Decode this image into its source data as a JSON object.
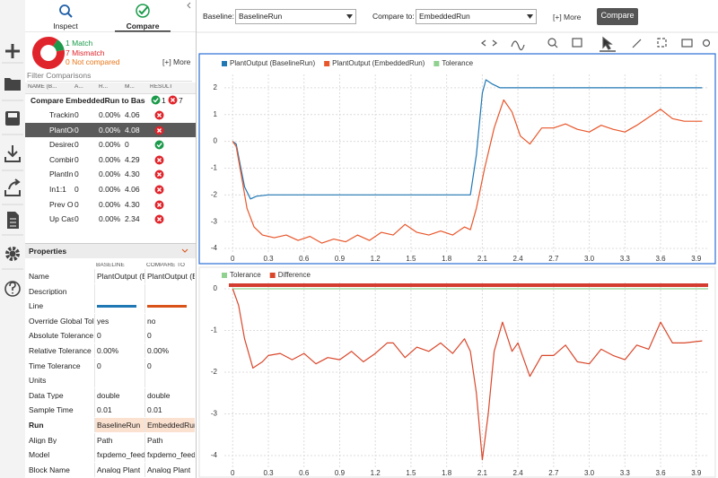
{
  "left_panel": {
    "tabs": [
      "Inspect",
      "Compare"
    ],
    "summary": [
      {
        "value": 1,
        "label": "1 Match",
        "color": "#1a9a4a"
      },
      {
        "value": 7,
        "label": "7 Mismatch",
        "color": "#e0242b"
      },
      {
        "value": 0,
        "label": "0 Not compared",
        "color": "#e8761a"
      }
    ],
    "more": "[+] More",
    "filter": "Filter Comparisons",
    "table": {
      "columns": [
        "NAME (B...",
        "A...",
        "R...",
        "M...",
        "RESULT"
      ],
      "group": {
        "name": "Compare EmbeddedRun to Base",
        "pass": "1",
        "fail": "7"
      },
      "rows": [
        {
          "cells": [
            "Tracking",
            "0",
            "0.00%",
            "4.06"
          ],
          "result": "fail"
        },
        {
          "cells": [
            "PlantOut",
            "0",
            "0.00%",
            "4.08"
          ],
          "result": "fail",
          "selected": true
        },
        {
          "cells": [
            "Desired",
            "0",
            "0.00%",
            "0"
          ],
          "result": "pass"
        },
        {
          "cells": [
            "Combin",
            "0",
            "0.00%",
            "4.29"
          ],
          "result": "fail"
        },
        {
          "cells": [
            "PlantInp",
            "0",
            "0.00%",
            "4.30"
          ],
          "result": "fail"
        },
        {
          "cells": [
            "In1:1",
            "0",
            "0.00%",
            "4.06"
          ],
          "result": "fail"
        },
        {
          "cells": [
            "Prev Ou",
            "0",
            "0.00%",
            "4.30"
          ],
          "result": "fail"
        },
        {
          "cells": [
            "Up Cast",
            "0",
            "0.00%",
            "2.34"
          ],
          "result": "fail"
        }
      ]
    },
    "properties": {
      "title": "Properties",
      "columns": [
        "BASELINE",
        "COMPARE TO"
      ],
      "rows": [
        {
          "label": "Name",
          "baseline": "PlantOutput (B",
          "compare": "PlantOutput (E"
        },
        {
          "label": "Description"
        },
        {
          "label": "Line",
          "baseline_color": "#1f77b4",
          "compare_color": "#d95319"
        },
        {
          "label": "Override Global Tole",
          "baseline": "yes",
          "compare": "no"
        },
        {
          "label": "Absolute Tolerance",
          "baseline": "0",
          "compare": "0"
        },
        {
          "label": "Relative Tolerance",
          "baseline": "0.00%",
          "compare": "0.00%"
        },
        {
          "label": "Time Tolerance",
          "baseline": "0",
          "compare": "0"
        },
        {
          "label": "Units"
        },
        {
          "label": "Data Type",
          "baseline": "double",
          "compare": "double"
        },
        {
          "label": "Sample Time",
          "baseline": "0.01",
          "compare": "0.01"
        },
        {
          "label": "Run",
          "baseline": "BaselineRun",
          "compare": "EmbeddedRun",
          "highlight": true
        },
        {
          "label": "Align By",
          "baseline": "Path",
          "compare": "Path"
        },
        {
          "label": "Model",
          "baseline": "fxpdemo_feedb",
          "compare": "fxpdemo_feedb"
        },
        {
          "label": "Block Name",
          "baseline": "Analog Plant",
          "compare": "Analog Plant"
        }
      ]
    }
  },
  "top_bar": {
    "baseline_label": "Baseline:",
    "baseline": "BaselineRun",
    "compare_label": "Compare to:",
    "compare": "EmbeddedRun",
    "more": "[+] More",
    "button": "Compare"
  },
  "chart_data": [
    {
      "type": "line",
      "xlim": [
        -0.07,
        4.0
      ],
      "ylim": [
        -4.2,
        2.5
      ],
      "grid": true,
      "xticks": [
        0,
        0.3,
        0.6,
        0.9,
        1.2,
        1.5,
        1.8,
        2.1,
        2.4,
        2.7,
        {
          "value": 3,
          "label": "3.0"
        },
        3.3,
        3.6,
        3.9
      ],
      "yticks": [
        -4,
        -3,
        -2,
        -1,
        0,
        1,
        2
      ],
      "series": [
        {
          "name": "PlantOutput (BaselineRun)",
          "color": "#1f77b4",
          "x": [
            0,
            0.03,
            0.06,
            0.1,
            0.15,
            0.2,
            0.3,
            2.0,
            2.05,
            2.1,
            2.13,
            2.18,
            2.25,
            3.95
          ],
          "values": [
            0,
            -0.1,
            -0.8,
            -1.7,
            -2.15,
            -2.05,
            -2,
            -2,
            -0.5,
            1.8,
            2.3,
            2.15,
            2,
            2
          ]
        },
        {
          "name": "PlantOutput (EmbeddedRun)",
          "color": "#e8562a",
          "x": [
            0,
            0.03,
            0.07,
            0.12,
            0.18,
            0.25,
            0.35,
            0.45,
            0.55,
            0.65,
            0.75,
            0.85,
            0.95,
            1.05,
            1.15,
            1.25,
            1.35,
            1.45,
            1.55,
            1.65,
            1.75,
            1.85,
            1.95,
            2.0,
            2.05,
            2.12,
            2.2,
            2.28,
            2.35,
            2.42,
            2.5,
            2.6,
            2.7,
            2.8,
            2.9,
            3.0,
            3.1,
            3.2,
            3.3,
            3.4,
            3.5,
            3.6,
            3.7,
            3.8,
            3.95
          ],
          "values": [
            0,
            -0.2,
            -1.2,
            -2.5,
            -3.2,
            -3.5,
            -3.6,
            -3.5,
            -3.7,
            -3.55,
            -3.8,
            -3.65,
            -3.75,
            -3.5,
            -3.7,
            -3.4,
            -3.5,
            -3.1,
            -3.4,
            -3.5,
            -3.35,
            -3.5,
            -3.2,
            -3.3,
            -2.5,
            -1.0,
            0.5,
            1.55,
            1.1,
            0.2,
            -0.1,
            0.5,
            0.5,
            0.65,
            0.45,
            0.35,
            0.6,
            0.45,
            0.35,
            0.6,
            0.9,
            1.2,
            0.85,
            0.75,
            0.75
          ]
        },
        {
          "name": "Tolerance",
          "color": "#8fd18f"
        }
      ]
    },
    {
      "type": "line",
      "xlim": [
        -0.07,
        4.0
      ],
      "ylim": [
        -4.3,
        0.15
      ],
      "grid": true,
      "xticks": [
        0,
        0.3,
        0.6,
        0.9,
        1.2,
        1.5,
        1.8,
        2.1,
        2.4,
        2.7,
        {
          "value": 3,
          "label": "3.0"
        },
        3.3,
        3.6,
        3.9
      ],
      "yticks": [
        -4,
        -3,
        -2,
        -1,
        0
      ],
      "series": [
        {
          "name": "Tolerance",
          "color": "#8fd18f",
          "x": [
            0,
            4.0
          ],
          "values": [
            0,
            0
          ]
        },
        {
          "name": "Difference",
          "color": "#d9472b",
          "x": [
            0,
            0.05,
            0.1,
            0.17,
            0.25,
            0.3,
            0.4,
            0.5,
            0.6,
            0.7,
            0.8,
            0.9,
            1.0,
            1.1,
            1.2,
            1.3,
            1.35,
            1.45,
            1.55,
            1.65,
            1.75,
            1.85,
            1.95,
            2.0,
            2.05,
            2.1,
            2.15,
            2.2,
            2.27,
            2.35,
            2.4,
            2.5,
            2.6,
            2.7,
            2.8,
            2.9,
            3.0,
            3.1,
            3.2,
            3.3,
            3.4,
            3.5,
            3.6,
            3.7,
            3.8,
            3.95
          ],
          "values": [
            0,
            -0.4,
            -1.2,
            -1.9,
            -1.75,
            -1.6,
            -1.55,
            -1.7,
            -1.55,
            -1.8,
            -1.65,
            -1.7,
            -1.5,
            -1.75,
            -1.55,
            -1.3,
            -1.3,
            -1.65,
            -1.4,
            -1.5,
            -1.3,
            -1.55,
            -1.2,
            -1.5,
            -2.5,
            -4.1,
            -3.0,
            -1.5,
            -0.8,
            -1.5,
            -1.3,
            -2.1,
            -1.6,
            -1.6,
            -1.35,
            -1.75,
            -1.8,
            -1.45,
            -1.6,
            -1.7,
            -1.35,
            -1.45,
            -0.8,
            -1.3,
            -1.3,
            -1.25
          ]
        }
      ]
    }
  ]
}
